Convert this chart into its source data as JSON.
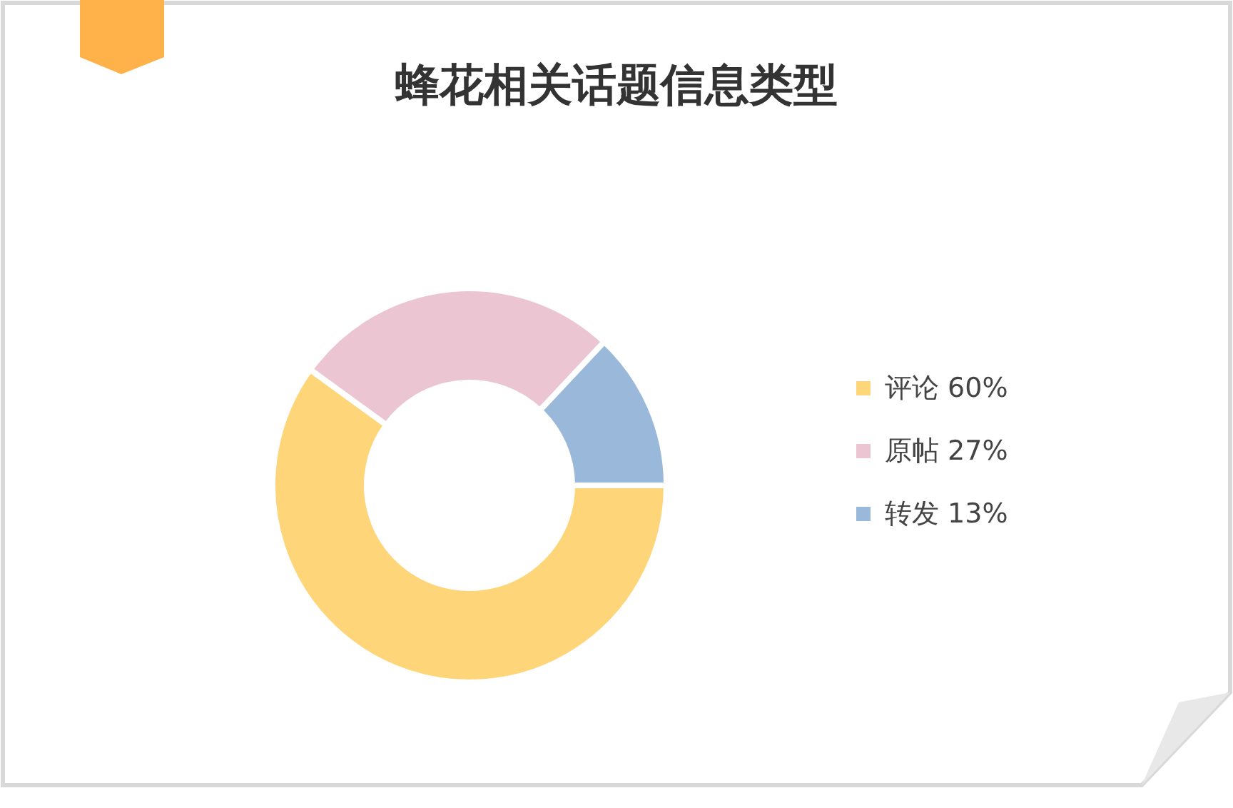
{
  "chart_data": {
    "type": "donut",
    "title": "蜂花相关话题信息类型",
    "categories": [
      "评论",
      "原帖",
      "转发"
    ],
    "values": [
      60,
      27,
      13
    ],
    "value_labels": [
      "60%",
      "27%",
      "13%"
    ],
    "colors": [
      "#ffd57a",
      "#ecc5d3",
      "#9ab8da"
    ],
    "legend": "right"
  }
}
